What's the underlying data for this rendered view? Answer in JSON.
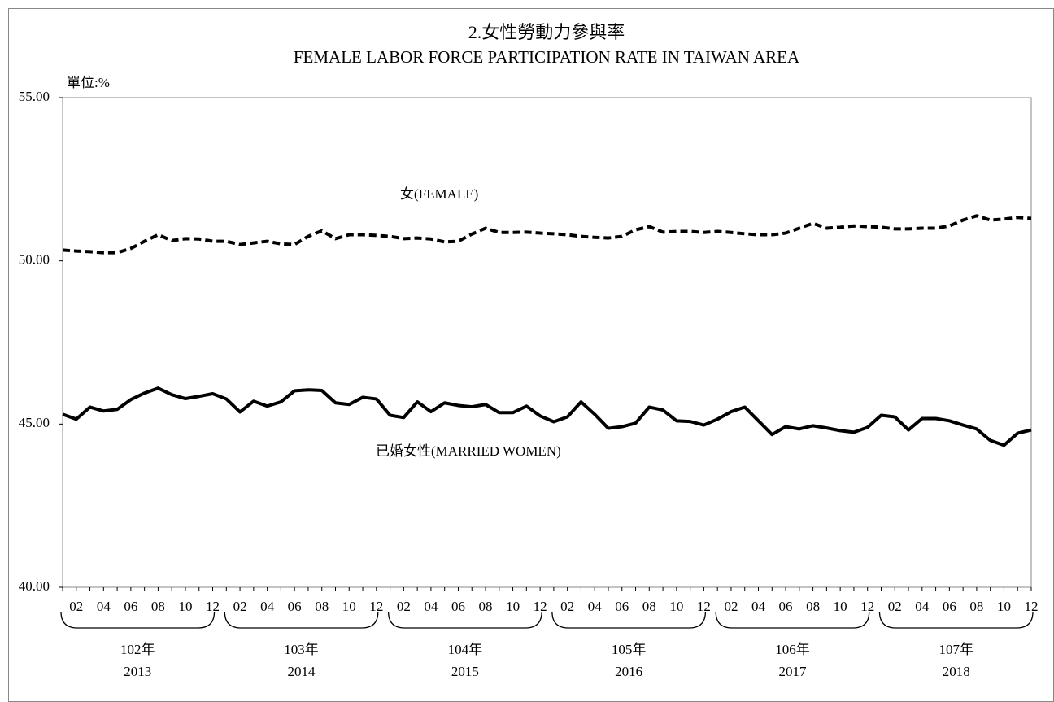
{
  "chart_data": {
    "type": "line",
    "title": "2.女性勞動力參與率",
    "subtitle": "FEMALE LABOR FORCE PARTICIPATION RATE IN TAIWAN AREA",
    "unit_label": "單位:%",
    "categories": [
      null,
      "02",
      null,
      "04",
      null,
      "06",
      null,
      "08",
      null,
      "10",
      null,
      "12",
      null,
      "02",
      null,
      "04",
      null,
      "06",
      null,
      "08",
      null,
      "10",
      null,
      "12",
      null,
      "02",
      null,
      "04",
      null,
      "06",
      null,
      "08",
      null,
      "10",
      null,
      "12",
      null,
      "02",
      null,
      "04",
      null,
      "06",
      null,
      "08",
      null,
      "10",
      null,
      "12",
      null,
      "02",
      null,
      "04",
      null,
      "06",
      null,
      "08",
      null,
      "10",
      null,
      "12",
      null,
      "02",
      null,
      "04",
      null,
      "06",
      null,
      "08",
      null,
      "10",
      null,
      "12"
    ],
    "year_groups": [
      {
        "label": "102年",
        "year": "2013"
      },
      {
        "label": "103年",
        "year": "2014"
      },
      {
        "label": "104年",
        "year": "2015"
      },
      {
        "label": "105年",
        "year": "2016"
      },
      {
        "label": "106年",
        "year": "2017"
      },
      {
        "label": "107年",
        "year": "2018"
      }
    ],
    "series": [
      {
        "name": "女(FEMALE)",
        "color": "#000000",
        "line_style": "dashed",
        "values": [
          50.33,
          50.3,
          50.28,
          50.25,
          50.25,
          50.38,
          50.6,
          50.8,
          50.62,
          50.68,
          50.67,
          50.6,
          50.6,
          50.5,
          50.55,
          50.6,
          50.52,
          50.5,
          50.75,
          50.92,
          50.68,
          50.8,
          50.8,
          50.78,
          50.75,
          50.68,
          50.7,
          50.67,
          50.58,
          50.6,
          50.82,
          51.0,
          50.87,
          50.87,
          50.88,
          50.85,
          50.83,
          50.8,
          50.75,
          50.72,
          50.7,
          50.75,
          50.95,
          51.05,
          50.88,
          50.9,
          50.9,
          50.87,
          50.9,
          50.87,
          50.83,
          50.8,
          50.8,
          50.85,
          51.0,
          51.15,
          51.0,
          51.03,
          51.07,
          51.05,
          51.03,
          50.98,
          50.98,
          51.0,
          51.0,
          51.07,
          51.25,
          51.38,
          51.25,
          51.28,
          51.33,
          51.3
        ]
      },
      {
        "name": "已婚女性(MARRIED WOMEN)",
        "color": "#000000",
        "line_style": "solid",
        "values": [
          45.3,
          45.15,
          45.52,
          45.4,
          45.45,
          45.75,
          45.95,
          46.1,
          45.9,
          45.78,
          45.85,
          45.93,
          45.77,
          45.37,
          45.7,
          45.55,
          45.68,
          46.02,
          46.05,
          46.03,
          45.65,
          45.6,
          45.82,
          45.77,
          45.27,
          45.2,
          45.68,
          45.38,
          45.65,
          45.57,
          45.53,
          45.6,
          45.35,
          45.35,
          45.55,
          45.25,
          45.07,
          45.22,
          45.68,
          45.3,
          44.87,
          44.92,
          45.03,
          45.52,
          45.43,
          45.1,
          45.08,
          44.97,
          45.15,
          45.38,
          45.52,
          45.1,
          44.68,
          44.92,
          44.85,
          44.95,
          44.88,
          44.8,
          44.75,
          44.9,
          45.27,
          45.22,
          44.82,
          45.17,
          45.17,
          45.1,
          44.97,
          44.85,
          44.5,
          44.35,
          44.72,
          44.82
        ]
      }
    ],
    "ylim": [
      40,
      55
    ],
    "yticks": [
      {
        "value": 40,
        "label": "40.00"
      },
      {
        "value": 45,
        "label": "45.00"
      },
      {
        "value": 50,
        "label": "50.00"
      },
      {
        "value": 55,
        "label": "55.00"
      }
    ],
    "grid": false
  }
}
